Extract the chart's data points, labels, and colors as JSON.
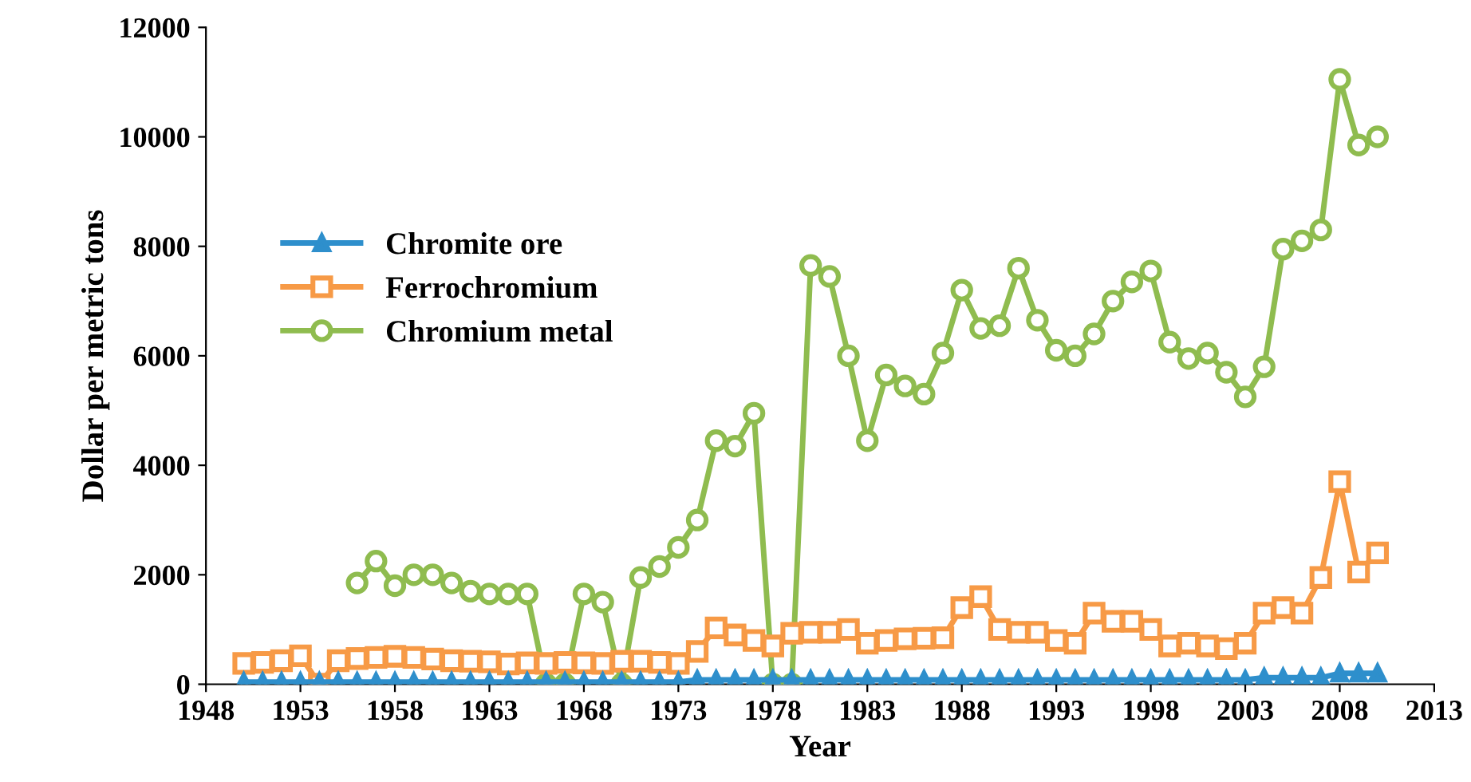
{
  "chart_data": {
    "type": "line",
    "xlabel": "Year",
    "ylabel": "Dollar per metric tons",
    "x": [
      1950,
      1951,
      1952,
      1953,
      1954,
      1955,
      1956,
      1957,
      1958,
      1959,
      1960,
      1961,
      1962,
      1963,
      1964,
      1965,
      1966,
      1967,
      1968,
      1969,
      1970,
      1971,
      1972,
      1973,
      1974,
      1975,
      1976,
      1977,
      1978,
      1979,
      1980,
      1981,
      1982,
      1983,
      1984,
      1985,
      1986,
      1987,
      1988,
      1989,
      1990,
      1991,
      1992,
      1993,
      1994,
      1995,
      1996,
      1997,
      1998,
      1999,
      2000,
      2001,
      2002,
      2003,
      2004,
      2005,
      2006,
      2007,
      2008,
      2009,
      2010
    ],
    "series": [
      {
        "name": "Chromite ore",
        "color": "#2e8fcc",
        "marker": "triangle",
        "values": [
          40,
          40,
          40,
          40,
          40,
          40,
          40,
          40,
          40,
          40,
          40,
          40,
          40,
          40,
          40,
          40,
          40,
          40,
          40,
          40,
          40,
          40,
          40,
          40,
          80,
          80,
          80,
          80,
          80,
          80,
          80,
          80,
          80,
          80,
          80,
          80,
          80,
          80,
          80,
          80,
          80,
          80,
          80,
          80,
          80,
          80,
          80,
          80,
          80,
          80,
          80,
          80,
          80,
          80,
          120,
          120,
          120,
          120,
          200,
          200,
          200
        ]
      },
      {
        "name": "Ferrochromium",
        "color": "#f79a46",
        "marker": "square",
        "values": [
          380,
          400,
          430,
          520,
          0,
          430,
          470,
          490,
          510,
          490,
          460,
          430,
          420,
          410,
          370,
          390,
          380,
          400,
          390,
          380,
          420,
          420,
          400,
          380,
          600,
          1030,
          900,
          800,
          700,
          930,
          950,
          950,
          1000,
          750,
          800,
          830,
          840,
          850,
          1400,
          1600,
          1000,
          950,
          950,
          800,
          750,
          1300,
          1150,
          1150,
          1000,
          700,
          750,
          700,
          650,
          750,
          1300,
          1400,
          1300,
          1950,
          3700,
          2050,
          2400
        ]
      },
      {
        "name": "Chromium metal",
        "color": "#8fbc4f",
        "marker": "circle",
        "values": [
          null,
          null,
          null,
          null,
          null,
          null,
          1850,
          2250,
          1800,
          2000,
          2000,
          1850,
          1700,
          1650,
          1650,
          1650,
          0,
          0,
          1650,
          1500,
          0,
          1950,
          2150,
          2500,
          3000,
          4450,
          4350,
          4950,
          0,
          0,
          7650,
          7450,
          6000,
          4450,
          5650,
          5450,
          5300,
          6050,
          7200,
          6500,
          6550,
          7600,
          6650,
          6100,
          6000,
          6400,
          7000,
          7350,
          7550,
          6250,
          5950,
          6050,
          5700,
          5250,
          5800,
          7950,
          8100,
          8300,
          11050,
          9850,
          10000
        ]
      }
    ],
    "xlim": [
      1948,
      2013
    ],
    "xticks": [
      1948,
      1953,
      1958,
      1963,
      1968,
      1973,
      1978,
      1983,
      1988,
      1993,
      1998,
      2003,
      2008,
      2013
    ],
    "ylim": [
      0,
      12000
    ],
    "yticks": [
      0,
      2000,
      4000,
      6000,
      8000,
      10000,
      12000
    ],
    "grid": false,
    "legend": "left",
    "line_style": "solid"
  }
}
